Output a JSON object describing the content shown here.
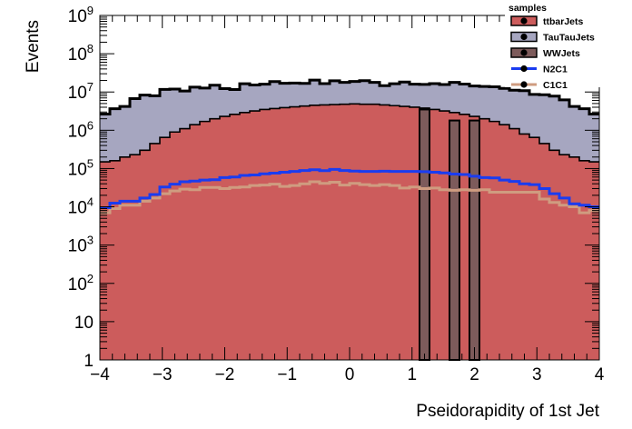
{
  "chart_data": {
    "type": "histogram",
    "xlabel": "Pseidorapidity of 1st Jet",
    "ylabel": "Events",
    "xlim": [
      -4,
      4
    ],
    "ylim": [
      1,
      1000000000
    ],
    "yscale": "log",
    "x_ticks": [
      -4,
      -3,
      -2,
      -1,
      0,
      1,
      2,
      3,
      4
    ],
    "x_tick_labels": [
      "−4",
      "−3",
      "−2",
      "−1",
      "0",
      "1",
      "2",
      "3",
      "4"
    ],
    "y_ticks": [
      {
        "value": 1,
        "base": "1",
        "exp": ""
      },
      {
        "value": 10,
        "base": "10",
        "exp": ""
      },
      {
        "value": 100,
        "base": "10",
        "exp": "2"
      },
      {
        "value": 1000,
        "base": "10",
        "exp": "3"
      },
      {
        "value": 10000,
        "base": "10",
        "exp": "4"
      },
      {
        "value": 100000,
        "base": "10",
        "exp": "5"
      },
      {
        "value": 1000000,
        "base": "10",
        "exp": "6"
      },
      {
        "value": 10000000,
        "base": "10",
        "exp": "7"
      },
      {
        "value": 100000000,
        "base": "10",
        "exp": "8"
      },
      {
        "value": 1000000000,
        "base": "10",
        "exp": "9"
      }
    ],
    "bins": 50,
    "legend": {
      "title": "samples",
      "position": "top-right",
      "entries": [
        {
          "label": "ttbarJets",
          "color": "#cc5c5c",
          "kind": "fill"
        },
        {
          "label": "TauTauJets",
          "color": "#a6a6c0",
          "kind": "fill"
        },
        {
          "label": "WWJets",
          "color": "#7d5b5b",
          "kind": "fill"
        },
        {
          "label": "N2C1",
          "color": "#1a3cf0",
          "kind": "line"
        },
        {
          "label": "C1C1",
          "color": "#cf9c80",
          "kind": "line"
        }
      ]
    },
    "series": [
      {
        "name": "ttbarJets",
        "style": "stacked-fill",
        "color": "#cc5c5c",
        "values": [
          150000,
          160000,
          200000,
          230000,
          300000,
          450000,
          650000,
          900000,
          1100000,
          1400000,
          1700000,
          2000000,
          2300000,
          2600000,
          2900000,
          3200000,
          3500000,
          3700000,
          3900000,
          4100000,
          4300000,
          4500000,
          4600000,
          4700000,
          4800000,
          4900000,
          4800000,
          4800000,
          4600000,
          4400000,
          4200000,
          4000000,
          3800000,
          3500000,
          3200000,
          2900000,
          2600000,
          2300000,
          2000000,
          1700000,
          1400000,
          1100000,
          800000,
          650000,
          450000,
          300000,
          230000,
          200000,
          160000,
          150000
        ]
      },
      {
        "name": "TauTauJets",
        "style": "stacked-fill",
        "color": "#a6a6c0",
        "values": [
          2500000,
          3500000,
          4000000,
          6500000,
          8000000,
          7500000,
          11000000,
          11000000,
          9500000,
          12000000,
          11000000,
          13000000,
          10000000,
          9000000,
          13500000,
          12000000,
          12500000,
          15000000,
          13000000,
          13000000,
          12500000,
          16000000,
          12000000,
          15000000,
          13000000,
          14000000,
          15000000,
          13000000,
          10000000,
          12000000,
          14000000,
          12000000,
          12000000,
          13000000,
          12500000,
          15000000,
          13500000,
          12000000,
          12000000,
          12000000,
          11000000,
          10000000,
          10000000,
          8000000,
          8000000,
          7500000,
          6000000,
          4000000,
          3500000,
          2500000
        ]
      },
      {
        "name": "WWJets",
        "style": "bars",
        "color": "#7d5b5b",
        "values": [
          0,
          0,
          0,
          0,
          0,
          0,
          0,
          0,
          0,
          0,
          0,
          0,
          0,
          0,
          0,
          0,
          0,
          0,
          0,
          0,
          0,
          0,
          0,
          0,
          0,
          0,
          0,
          0,
          0,
          0,
          0,
          0,
          3500000,
          0,
          0,
          1800000,
          0,
          1800000,
          0,
          0,
          0,
          0,
          0,
          0,
          0,
          0,
          0,
          0,
          0,
          0
        ]
      },
      {
        "name": "N2C1",
        "style": "line",
        "color": "#1a3cf0",
        "values": [
          9500,
          12500,
          14000,
          14000,
          17000,
          21000,
          33000,
          39000,
          45000,
          47000,
          50000,
          51000,
          58000,
          60000,
          66000,
          68000,
          73000,
          76000,
          80000,
          84000,
          89000,
          93000,
          88000,
          95000,
          89000,
          86000,
          84000,
          84000,
          85000,
          84000,
          84000,
          84000,
          83000,
          80000,
          77000,
          72000,
          70000,
          63000,
          58000,
          57000,
          50000,
          46000,
          40000,
          38000,
          30000,
          22000,
          17000,
          12000,
          11000,
          10000
        ]
      },
      {
        "name": "C1C1",
        "style": "line",
        "color": "#cf9c80",
        "values": [
          7000,
          9000,
          11000,
          11000,
          14000,
          17000,
          22000,
          26000,
          29000,
          28000,
          32000,
          32000,
          30000,
          32000,
          33000,
          36000,
          37000,
          39000,
          34000,
          36000,
          40000,
          45000,
          41000,
          44000,
          37000,
          41000,
          38000,
          36000,
          38000,
          36000,
          31000,
          33000,
          30000,
          31000,
          28000,
          27000,
          28000,
          27000,
          28000,
          24000,
          24000,
          24000,
          24000,
          24000,
          16000,
          13000,
          11000,
          10000,
          7000,
          8000
        ]
      }
    ]
  }
}
